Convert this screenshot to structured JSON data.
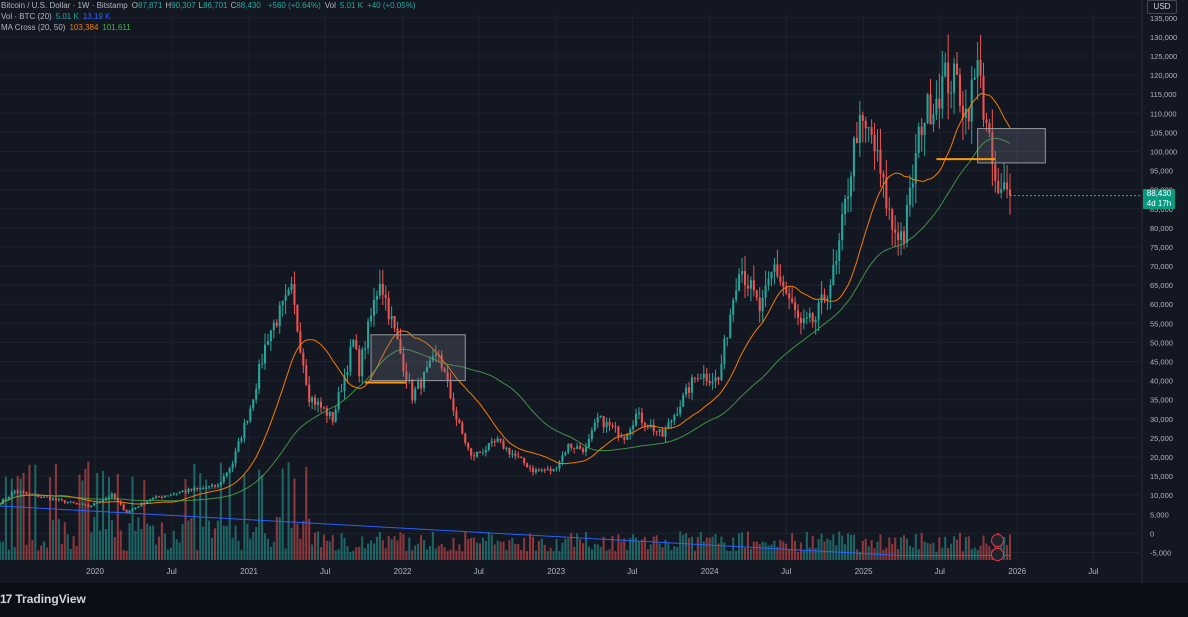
{
  "legend": {
    "title": "Bitcoin / U.S. Dollar · 1W · Bitstamp",
    "ohlc": [
      {
        "k": "O",
        "v": "87,871"
      },
      {
        "k": "H",
        "v": "90,307"
      },
      {
        "k": "L",
        "v": "86,701"
      },
      {
        "k": "C",
        "v": "88,430"
      }
    ],
    "change": "+560 (+0.64%)",
    "vol_label": "Vol",
    "vol_value": "5.01 K",
    "vol_change": "+40 (+0.05%)",
    "vol_line": {
      "label": "Vol · BTC (20)",
      "v1": "5.01 K",
      "v2": "13.19 K"
    },
    "ma_line": {
      "label": "MA Cross (20, 50)",
      "v1": "103,384",
      "v2": "101,611"
    }
  },
  "currency": "USD",
  "last_price": {
    "price": "88,430",
    "countdown": "4d 17h"
  },
  "branding": {
    "logo_mark": "17",
    "name": "TradingView"
  },
  "colors": {
    "background": "#131722",
    "up": "#26a69a",
    "down": "#ef5350",
    "ma_fast": "#f57c00",
    "ma_slow": "#4caf50",
    "vol_ma": "#2962ff",
    "box": "#787b86",
    "support": "#ff9800",
    "grid": "#1e222d"
  },
  "chart_data": {
    "type": "candlestick",
    "symbol": "Bitcoin / U.S. Dollar",
    "interval": "1W",
    "exchange": "Bitstamp",
    "y_axis": {
      "range": [
        -7500,
        136000
      ],
      "ticks": [
        "-5,000",
        "0",
        "5,000",
        "10,000",
        "15,000",
        "20,000",
        "25,000",
        "30,000",
        "35,000",
        "40,000",
        "45,000",
        "50,000",
        "55,000",
        "60,000",
        "65,000",
        "70,000",
        "75,000",
        "80,000",
        "85,000",
        "90,000",
        "95,000",
        "100,000",
        "105,000",
        "110,000",
        "115,000",
        "120,000",
        "125,000",
        "130,000",
        "135,000"
      ],
      "tick_values": [
        -5000,
        0,
        5000,
        10000,
        15000,
        20000,
        25000,
        30000,
        35000,
        40000,
        45000,
        50000,
        55000,
        60000,
        65000,
        70000,
        75000,
        80000,
        85000,
        90000,
        95000,
        100000,
        105000,
        110000,
        115000,
        120000,
        125000,
        130000,
        135000
      ]
    },
    "x_axis": {
      "range": [
        "2019-05-20",
        "2026-10-20"
      ],
      "ticks": [
        {
          "label": "2020",
          "date": "2020-01-01"
        },
        {
          "label": "Jul",
          "date": "2020-07-01"
        },
        {
          "label": "2021",
          "date": "2021-01-01"
        },
        {
          "label": "Jul",
          "date": "2021-07-01"
        },
        {
          "label": "2022",
          "date": "2022-01-01"
        },
        {
          "label": "Jul",
          "date": "2022-07-01"
        },
        {
          "label": "2023",
          "date": "2023-01-01"
        },
        {
          "label": "Jul",
          "date": "2023-07-01"
        },
        {
          "label": "2024",
          "date": "2024-01-01"
        },
        {
          "label": "Jul",
          "date": "2024-07-01"
        },
        {
          "label": "2025",
          "date": "2025-01-01"
        },
        {
          "label": "Jul",
          "date": "2025-07-01"
        },
        {
          "label": "2026",
          "date": "2026-01-01"
        },
        {
          "label": "Jul",
          "date": "2026-07-01"
        }
      ]
    },
    "grid": true,
    "price_anchors": [
      [
        "2019-05-20",
        8000
      ],
      [
        "2019-06-24",
        11000
      ],
      [
        "2019-09-01",
        9500
      ],
      [
        "2019-12-16",
        7000
      ],
      [
        "2020-02-10",
        10000
      ],
      [
        "2020-03-16",
        5500
      ],
      [
        "2020-05-11",
        9000
      ],
      [
        "2020-07-27",
        11000
      ],
      [
        "2020-10-19",
        12500
      ],
      [
        "2020-11-23",
        18500
      ],
      [
        "2021-01-04",
        33000
      ],
      [
        "2021-02-15",
        52000
      ],
      [
        "2021-04-12",
        63000
      ],
      [
        "2021-05-24",
        36000
      ],
      [
        "2021-07-19",
        30000
      ],
      [
        "2021-09-06",
        50000
      ],
      [
        "2021-09-20",
        43000
      ],
      [
        "2021-11-08",
        67000
      ],
      [
        "2021-12-27",
        47000
      ],
      [
        "2022-01-24",
        36000
      ],
      [
        "2022-03-28",
        47000
      ],
      [
        "2022-05-09",
        30000
      ],
      [
        "2022-06-13",
        20000
      ],
      [
        "2022-08-15",
        24000
      ],
      [
        "2022-11-07",
        16500
      ],
      [
        "2022-12-26",
        16500
      ],
      [
        "2023-01-30",
        23000
      ],
      [
        "2023-03-13",
        22000
      ],
      [
        "2023-04-10",
        30000
      ],
      [
        "2023-06-12",
        25500
      ],
      [
        "2023-07-10",
        31000
      ],
      [
        "2023-09-11",
        25500
      ],
      [
        "2023-10-23",
        34000
      ],
      [
        "2023-12-04",
        42000
      ],
      [
        "2024-01-22",
        40000
      ],
      [
        "2024-03-11",
        71000
      ],
      [
        "2024-05-01",
        58000
      ],
      [
        "2024-06-03",
        70000
      ],
      [
        "2024-08-05",
        54000
      ],
      [
        "2024-09-09",
        56000
      ],
      [
        "2024-10-28",
        70000
      ],
      [
        "2024-12-16",
        106000
      ],
      [
        "2025-01-20",
        104000
      ],
      [
        "2025-03-10",
        80000
      ],
      [
        "2025-04-07",
        78000
      ],
      [
        "2025-05-19",
        108000
      ],
      [
        "2025-07-14",
        119000
      ],
      [
        "2025-08-11",
        118000
      ],
      [
        "2025-09-01",
        110000
      ],
      [
        "2025-10-06",
        124000
      ],
      [
        "2025-10-13",
        110000
      ],
      [
        "2025-11-17",
        87000
      ],
      [
        "2025-12-01",
        90000
      ],
      [
        "2025-12-15",
        88430
      ]
    ],
    "last": {
      "open": 87871,
      "high": 90307,
      "low": 86701,
      "close": 88430
    },
    "indicators": [
      {
        "name": "MA Cross (20, 50)",
        "lengths": [
          20,
          50
        ],
        "values": [
          103384,
          101611
        ]
      },
      {
        "name": "Vol · BTC (20)",
        "values": [
          "5.01 K",
          "13.19 K"
        ]
      }
    ],
    "annotations": [
      {
        "type": "rectangle",
        "from": "2021-10-18",
        "to": "2022-05-30",
        "low": 40000,
        "high": 52000
      },
      {
        "type": "rectangle",
        "from": "2025-09-29",
        "to": "2026-03-09",
        "low": 97000,
        "high": 106000
      },
      {
        "type": "hline",
        "from": "2021-10-04",
        "to": "2022-01-10",
        "y": 39500
      },
      {
        "type": "hline",
        "from": "2025-06-23",
        "to": "2025-11-10",
        "y": 98000
      }
    ]
  }
}
